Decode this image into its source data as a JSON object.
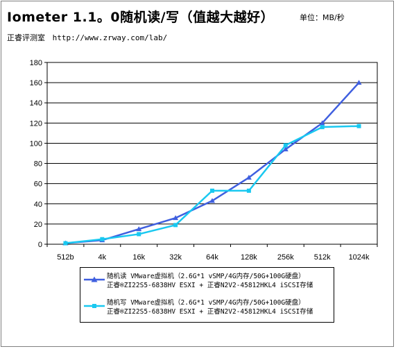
{
  "header": {
    "title": "Iometer 1.1。0随机读/写（值越大越好）",
    "unit": "单位：MB/秒",
    "source_org": "正睿评测室",
    "source_url": "http://www.zrway.com/lab/"
  },
  "chart_data": {
    "type": "line",
    "title": "Iometer 1.1。0随机读/写（值越大越好）",
    "xlabel": "",
    "ylabel": "",
    "ylim": [
      0,
      180
    ],
    "yticks": [
      "0",
      "20",
      "40",
      "60",
      "80",
      "100",
      "120",
      "140",
      "160",
      "180"
    ],
    "grid": true,
    "legend_position": "bottom",
    "categories": [
      "512b",
      "4k",
      "16k",
      "32k",
      "64k",
      "128k",
      "256k",
      "512k",
      "1024k"
    ],
    "series": [
      {
        "name": "随机读 VMware虚拟机（2.6G*1 vSMP/4G内存/50G+100G硬盘）",
        "name_line2": "正睿®ZI22S5-6838HV ESXI + 正睿N2V2-45812HKL4 iSCSI存储",
        "color": "#3f5fdf",
        "marker": "triangle",
        "values": [
          1,
          4,
          15,
          26,
          43,
          66,
          94,
          120,
          160
        ]
      },
      {
        "name": "随机写 VMware虚拟机（2.6G*1 vSMP/4G内存/50G+100G硬盘）",
        "name_line2": "正睿®ZI22S5-6838HV ESXI + 正睿N2V2-45812HKL4 iSCSI存储",
        "color": "#19c8f0",
        "marker": "square",
        "values": [
          1,
          5,
          10,
          19,
          53,
          53,
          98,
          116,
          117
        ]
      }
    ]
  }
}
